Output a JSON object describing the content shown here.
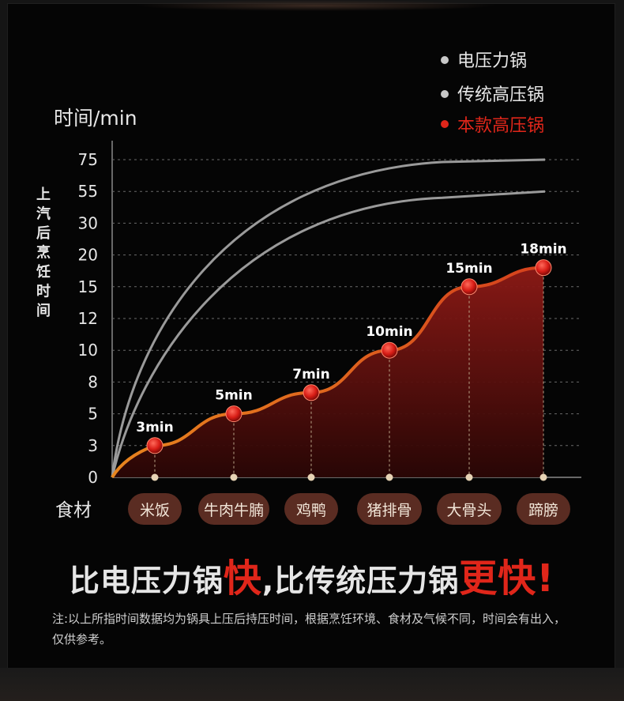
{
  "legend": [
    {
      "label": "电压力锅",
      "color": "#c8c8c8"
    },
    {
      "label": "传统高压锅",
      "color": "#c8c8c8"
    },
    {
      "label": "本款高压锅",
      "color": "#e0261a"
    }
  ],
  "headline": {
    "part1": "比电压力锅",
    "fast1": "快",
    "part2": ",比传统压力锅",
    "fast2": "更快!"
  },
  "note": "注:以上所指时间数据均为锅具上压后持压时间，根据烹饪环境、食材及气候不同，时间会有出入，仅供参考。",
  "colors": {
    "accent": "#e0261a",
    "pill": "#5a2c22",
    "grid": "#7a7a7a"
  },
  "chart_data": {
    "type": "line",
    "y_axis_title": "时间/min",
    "y_axis_side_label": "上汽后烹饪时间",
    "x_axis_title": "食材",
    "y_ticks": [
      0,
      3,
      5,
      8,
      10,
      12,
      15,
      20,
      30,
      55,
      75
    ],
    "categories": [
      "米饭",
      "牛肉牛腩",
      "鸡鸭",
      "猪排骨",
      "大骨头",
      "蹄膀"
    ],
    "series": [
      {
        "name": "本款高压锅",
        "values": [
          3,
          5,
          7,
          10,
          15,
          18
        ],
        "data_labels": [
          "3min",
          "5min",
          "7min",
          "10min",
          "15min",
          "18min"
        ],
        "color": "#e0261a"
      },
      {
        "name": "电压力锅",
        "values": [
          null,
          null,
          null,
          null,
          null,
          75
        ],
        "color": "#9a9a9a"
      },
      {
        "name": "传统高压锅",
        "values": [
          null,
          null,
          null,
          null,
          null,
          55
        ],
        "color": "#9a9a9a"
      }
    ],
    "grid": true,
    "legend_position": "top-right"
  }
}
